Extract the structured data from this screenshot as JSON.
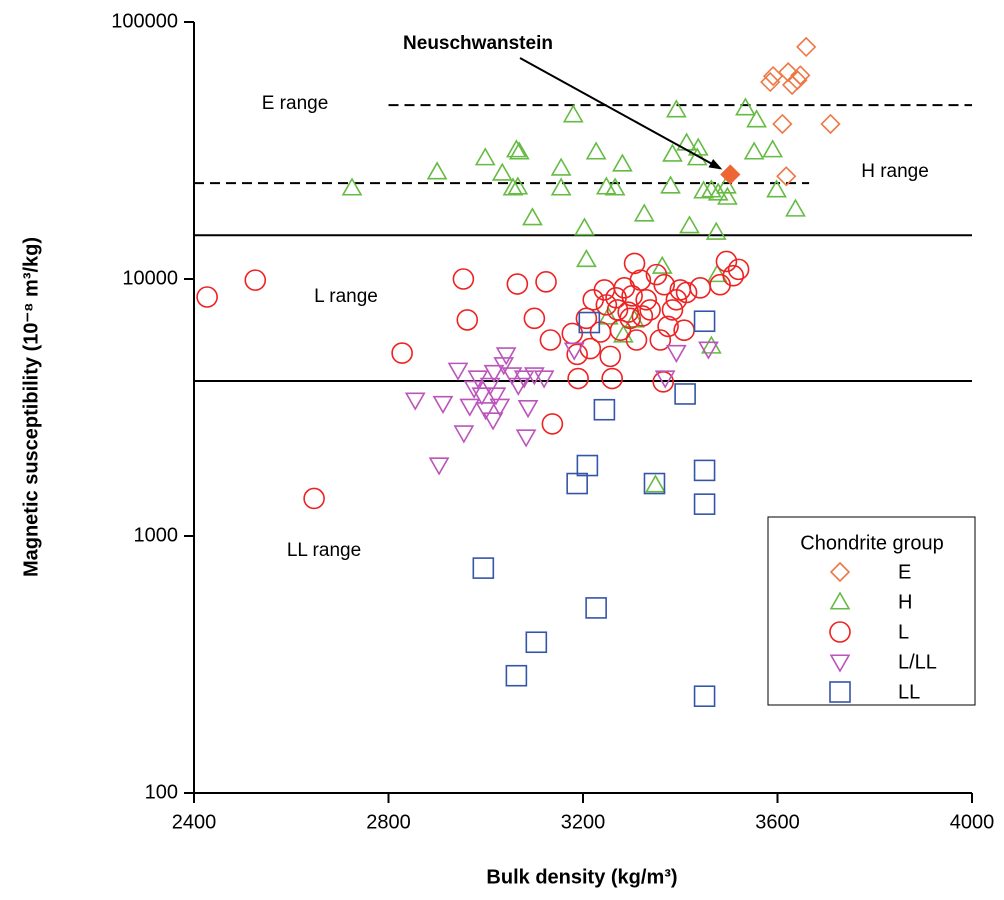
{
  "chart_data": {
    "type": "scatter",
    "x_label": "Bulk density (kg/m³)",
    "y_label": "Magnetic susceptibility (10⁻⁸ m³/kg)",
    "xlim": [
      2400,
      4000
    ],
    "xticks": [
      2400,
      2800,
      3200,
      3600,
      4000
    ],
    "ylim": [
      100,
      100000
    ],
    "yticks": [
      100,
      1000,
      10000,
      100000
    ],
    "y_scale": "log",
    "legend_title": "Chondrite group",
    "legend_position": "lower right",
    "reference_lines": [
      {
        "value": 47500,
        "x": [
          2800,
          4000
        ],
        "style": "dashed"
      },
      {
        "value": 23600,
        "x": [
          2400,
          3665
        ],
        "style": "dashed"
      },
      {
        "value": 14800,
        "x": [
          2400,
          4000
        ],
        "style": "solid"
      },
      {
        "value": 4010,
        "x": [
          2400,
          4000
        ],
        "style": "solid"
      }
    ],
    "range_labels": [
      "E range",
      "H range",
      "L range",
      "LL range"
    ],
    "annotation": {
      "text": "Neuschwanstein",
      "x": 3503,
      "y": 25500,
      "color": "#ee6633"
    },
    "series": [
      {
        "name": "E",
        "color": "#ee7744",
        "marker": "diamond",
        "x": [
          3659,
          3591,
          3585,
          3622,
          3641,
          3647,
          3630,
          3610,
          3709,
          3618
        ],
        "y": [
          80000,
          61600,
          58400,
          63800,
          59400,
          62000,
          56900,
          40100,
          40100,
          25100
        ]
      },
      {
        "name": "H",
        "color": "#66bb44",
        "marker": "triangle",
        "x": [
          2725,
          2900,
          2999,
          3034,
          3063,
          3069,
          3056,
          3066,
          3096,
          3180,
          3155,
          3155,
          3227,
          3248,
          3266,
          3281,
          3326,
          3203,
          3207,
          3283,
          3306,
          3380,
          3413,
          3437,
          3474,
          3435,
          3464,
          3495,
          3497,
          3392,
          3384,
          3478,
          3534,
          3557,
          3552,
          3590,
          3598,
          3637,
          3448,
          3419,
          3464,
          3476,
          3349,
          3363,
          3252
        ],
        "y": [
          22600,
          26100,
          29600,
          25800,
          31800,
          31200,
          22600,
          22800,
          17300,
          43500,
          27000,
          22600,
          31200,
          22800,
          22600,
          28000,
          17900,
          15800,
          11900,
          6050,
          6920,
          23000,
          33800,
          32300,
          15200,
          29600,
          22200,
          23000,
          20800,
          45500,
          30600,
          21600,
          46300,
          41600,
          31200,
          31800,
          22200,
          18700,
          22000,
          16100,
          5480,
          10400,
          1580,
          11200,
          7110
        ]
      },
      {
        "name": "L",
        "color": "#ee2222",
        "marker": "circle",
        "x": [
          2427,
          2526,
          2647,
          2828,
          2954,
          2962,
          3065,
          3100,
          3124,
          3133,
          3137,
          3178,
          3188,
          3190,
          3207,
          3215,
          3221,
          3236,
          3248,
          3256,
          3260,
          3268,
          3277,
          3285,
          3293,
          3301,
          3306,
          3310,
          3318,
          3322,
          3330,
          3338,
          3351,
          3359,
          3367,
          3375,
          3384,
          3392,
          3400,
          3408,
          3413,
          3441,
          3365,
          3482,
          3495,
          3509,
          3520,
          3297,
          3271,
          3244
        ],
        "y": [
          8510,
          9900,
          1400,
          5150,
          10000,
          6930,
          9560,
          7030,
          9750,
          5790,
          2730,
          6140,
          5090,
          4100,
          7030,
          5360,
          8300,
          6220,
          7930,
          5000,
          4100,
          8450,
          6320,
          9240,
          7430,
          8600,
          11500,
          5790,
          9900,
          7180,
          8300,
          7580,
          10400,
          5790,
          9500,
          6540,
          7580,
          8300,
          9070,
          6320,
          8860,
          9240,
          3980,
          9500,
          11700,
          10300,
          10900,
          7030,
          7580,
          9070
        ]
      },
      {
        "name": "L/LL",
        "color": "#bb55bb",
        "marker": "triangle-down",
        "x": [
          2855,
          2912,
          2904,
          2943,
          2955,
          2967,
          2976,
          2984,
          2992,
          3000,
          3009,
          3017,
          3021,
          3029,
          3037,
          3042,
          3054,
          3067,
          3079,
          3087,
          3083,
          3100,
          3120,
          3182,
          3369,
          3392,
          3458,
          3015
        ],
        "y": [
          3380,
          3280,
          1890,
          4420,
          2520,
          3200,
          3760,
          4120,
          3540,
          3100,
          3860,
          4330,
          3540,
          3200,
          4640,
          5070,
          4240,
          3860,
          4120,
          3160,
          2430,
          4240,
          4120,
          5290,
          4120,
          5180,
          5340,
          2830
        ]
      },
      {
        "name": "LL",
        "color": "#3355aa",
        "marker": "square",
        "x": [
          2995,
          3063,
          3104,
          3227,
          3188,
          3209,
          3213,
          3244,
          3347,
          3410,
          3450,
          3450,
          3450,
          3450
        ],
        "y": [
          750,
          286,
          386,
          525,
          1600,
          1880,
          6770,
          3100,
          1600,
          3570,
          6850,
          1800,
          1330,
          238
        ]
      }
    ]
  }
}
